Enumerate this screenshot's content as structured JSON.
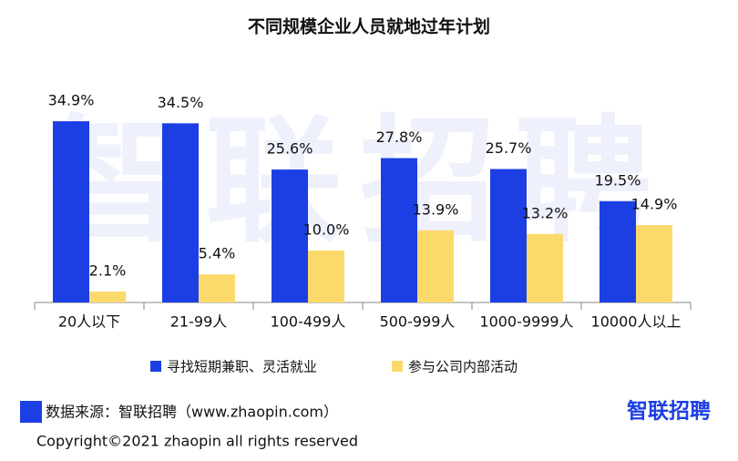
{
  "chart_data": {
    "type": "bar",
    "title": "不同规模企业人员就地过年计划",
    "categories": [
      "20人以下",
      "21-99人",
      "100-499人",
      "500-999人",
      "1000-9999人",
      "10000人以上"
    ],
    "series": [
      {
        "name": "寻找短期兼职、灵活就业",
        "color": "#1c3fe4",
        "values": [
          34.9,
          34.5,
          25.6,
          27.8,
          25.7,
          19.5
        ],
        "value_labels": [
          "34.9%",
          "34.5%",
          "25.6%",
          "27.8%",
          "25.7%",
          "19.5%"
        ]
      },
      {
        "name": "参与公司内部活动",
        "color": "#fcd96b",
        "values": [
          2.1,
          5.4,
          10.0,
          13.9,
          13.2,
          14.9
        ],
        "value_labels": [
          "2.1%",
          "5.4%",
          "10.0%",
          "13.9%",
          "13.2%",
          "14.9%"
        ]
      }
    ],
    "ylim": [
      0,
      35
    ],
    "legend": "bottom"
  },
  "footer": {
    "source": "数据来源：智联招聘（www.zhaopin.com）",
    "logo": "智联招聘",
    "copyright": "Copyright©2021 zhaopin all rights reserved"
  }
}
